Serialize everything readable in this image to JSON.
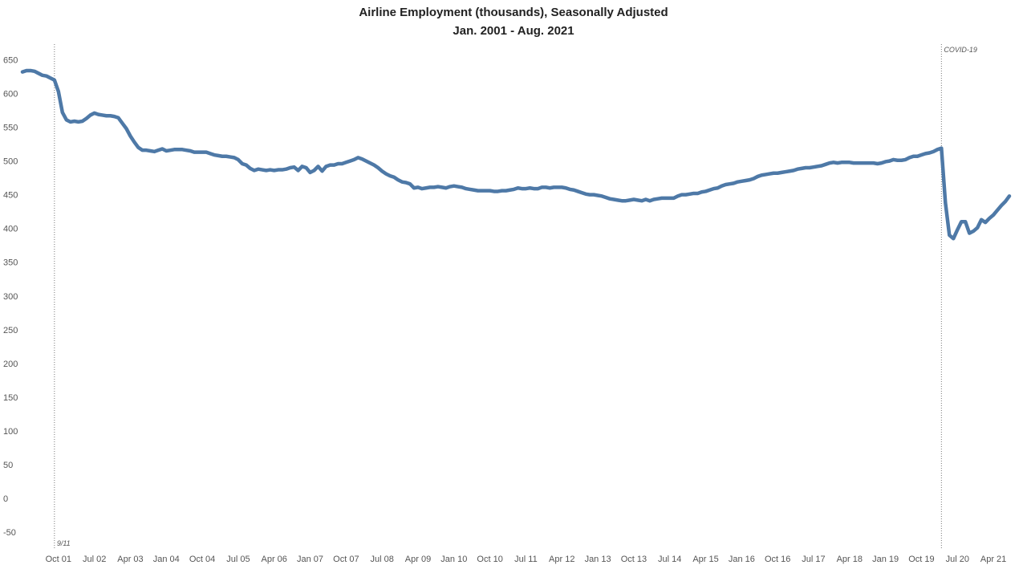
{
  "chart_data": {
    "type": "line",
    "title": "Airline Employment (thousands), Seasonally Adjusted",
    "subtitle": "Jan. 2001 - Aug. 2021",
    "xlabel": "",
    "ylabel": "",
    "ylim": [
      -50,
      650
    ],
    "xlim": [
      "2001-01",
      "2021-08"
    ],
    "grid": false,
    "y_ticks": [
      "650",
      "600",
      "550",
      "500",
      "450",
      "400",
      "350",
      "300",
      "250",
      "200",
      "150",
      "100",
      "50",
      "0",
      "-50"
    ],
    "x_ticks": [
      {
        "label": "Oct 01",
        "date": "2001-10"
      },
      {
        "label": "Jul 02",
        "date": "2002-07"
      },
      {
        "label": "Apr 03",
        "date": "2003-04"
      },
      {
        "label": "Jan 04",
        "date": "2004-01"
      },
      {
        "label": "Oct 04",
        "date": "2004-10"
      },
      {
        "label": "Jul 05",
        "date": "2005-07"
      },
      {
        "label": "Apr 06",
        "date": "2006-04"
      },
      {
        "label": "Jan 07",
        "date": "2007-01"
      },
      {
        "label": "Oct 07",
        "date": "2007-10"
      },
      {
        "label": "Jul 08",
        "date": "2008-07"
      },
      {
        "label": "Apr 09",
        "date": "2009-04"
      },
      {
        "label": "Jan 10",
        "date": "2010-01"
      },
      {
        "label": "Oct 10",
        "date": "2010-10"
      },
      {
        "label": "Jul 11",
        "date": "2011-07"
      },
      {
        "label": "Apr 12",
        "date": "2012-04"
      },
      {
        "label": "Jan 13",
        "date": "2013-01"
      },
      {
        "label": "Oct 13",
        "date": "2013-10"
      },
      {
        "label": "Jul 14",
        "date": "2014-07"
      },
      {
        "label": "Apr 15",
        "date": "2015-04"
      },
      {
        "label": "Jan 16",
        "date": "2016-01"
      },
      {
        "label": "Oct 16",
        "date": "2016-10"
      },
      {
        "label": "Jul 17",
        "date": "2017-07"
      },
      {
        "label": "Apr 18",
        "date": "2018-04"
      },
      {
        "label": "Jan 19",
        "date": "2019-01"
      },
      {
        "label": "Oct 19",
        "date": "2019-10"
      },
      {
        "label": "Jul 20",
        "date": "2020-07"
      },
      {
        "label": "Apr 21",
        "date": "2021-04"
      }
    ],
    "annotations": [
      {
        "text": "9/11",
        "date": "2001-09"
      },
      {
        "text": "COVID-19",
        "date": "2020-03"
      }
    ],
    "line_color": "#4e79a7",
    "series": [
      {
        "points": [
          [
            "2001-01",
            632
          ],
          [
            "2001-02",
            634
          ],
          [
            "2001-03",
            634
          ],
          [
            "2001-04",
            633
          ],
          [
            "2001-05",
            630
          ],
          [
            "2001-06",
            627
          ],
          [
            "2001-07",
            626
          ],
          [
            "2001-08",
            623
          ],
          [
            "2001-09",
            620
          ],
          [
            "2001-10",
            603
          ],
          [
            "2001-11",
            572
          ],
          [
            "2001-12",
            561
          ],
          [
            "2002-01",
            558
          ],
          [
            "2002-02",
            559
          ],
          [
            "2002-03",
            558
          ],
          [
            "2002-04",
            559
          ],
          [
            "2002-05",
            563
          ],
          [
            "2002-06",
            568
          ],
          [
            "2002-07",
            571
          ],
          [
            "2002-08",
            569
          ],
          [
            "2002-09",
            568
          ],
          [
            "2002-10",
            567
          ],
          [
            "2002-11",
            567
          ],
          [
            "2002-12",
            566
          ],
          [
            "2003-01",
            564
          ],
          [
            "2003-02",
            556
          ],
          [
            "2003-03",
            548
          ],
          [
            "2003-04",
            537
          ],
          [
            "2003-05",
            528
          ],
          [
            "2003-06",
            520
          ],
          [
            "2003-07",
            516
          ],
          [
            "2003-08",
            516
          ],
          [
            "2003-09",
            515
          ],
          [
            "2003-10",
            514
          ],
          [
            "2003-11",
            516
          ],
          [
            "2003-12",
            518
          ],
          [
            "2004-01",
            515
          ],
          [
            "2004-02",
            516
          ],
          [
            "2004-03",
            517
          ],
          [
            "2004-04",
            517
          ],
          [
            "2004-05",
            517
          ],
          [
            "2004-06",
            516
          ],
          [
            "2004-07",
            515
          ],
          [
            "2004-08",
            513
          ],
          [
            "2004-09",
            513
          ],
          [
            "2004-10",
            513
          ],
          [
            "2004-11",
            513
          ],
          [
            "2004-12",
            511
          ],
          [
            "2005-01",
            509
          ],
          [
            "2005-02",
            508
          ],
          [
            "2005-03",
            507
          ],
          [
            "2005-04",
            507
          ],
          [
            "2005-05",
            506
          ],
          [
            "2005-06",
            505
          ],
          [
            "2005-07",
            502
          ],
          [
            "2005-08",
            496
          ],
          [
            "2005-09",
            494
          ],
          [
            "2005-10",
            489
          ],
          [
            "2005-11",
            486
          ],
          [
            "2005-12",
            488
          ],
          [
            "2006-01",
            487
          ],
          [
            "2006-02",
            486
          ],
          [
            "2006-03",
            487
          ],
          [
            "2006-04",
            486
          ],
          [
            "2006-05",
            487
          ],
          [
            "2006-06",
            487
          ],
          [
            "2006-07",
            488
          ],
          [
            "2006-08",
            490
          ],
          [
            "2006-09",
            491
          ],
          [
            "2006-10",
            486
          ],
          [
            "2006-11",
            492
          ],
          [
            "2006-12",
            490
          ],
          [
            "2007-01",
            483
          ],
          [
            "2007-02",
            486
          ],
          [
            "2007-03",
            492
          ],
          [
            "2007-04",
            485
          ],
          [
            "2007-05",
            492
          ],
          [
            "2007-06",
            494
          ],
          [
            "2007-07",
            494
          ],
          [
            "2007-08",
            496
          ],
          [
            "2007-09",
            496
          ],
          [
            "2007-10",
            498
          ],
          [
            "2007-11",
            500
          ],
          [
            "2007-12",
            502
          ],
          [
            "2008-01",
            505
          ],
          [
            "2008-02",
            503
          ],
          [
            "2008-03",
            500
          ],
          [
            "2008-04",
            497
          ],
          [
            "2008-05",
            494
          ],
          [
            "2008-06",
            490
          ],
          [
            "2008-07",
            485
          ],
          [
            "2008-08",
            481
          ],
          [
            "2008-09",
            478
          ],
          [
            "2008-10",
            476
          ],
          [
            "2008-11",
            472
          ],
          [
            "2008-12",
            469
          ],
          [
            "2009-01",
            468
          ],
          [
            "2009-02",
            466
          ],
          [
            "2009-03",
            460
          ],
          [
            "2009-04",
            461
          ],
          [
            "2009-05",
            459
          ],
          [
            "2009-06",
            460
          ],
          [
            "2009-07",
            461
          ],
          [
            "2009-08",
            461
          ],
          [
            "2009-09",
            462
          ],
          [
            "2009-10",
            461
          ],
          [
            "2009-11",
            460
          ],
          [
            "2009-12",
            462
          ],
          [
            "2010-01",
            463
          ],
          [
            "2010-02",
            462
          ],
          [
            "2010-03",
            461
          ],
          [
            "2010-04",
            459
          ],
          [
            "2010-05",
            458
          ],
          [
            "2010-06",
            457
          ],
          [
            "2010-07",
            456
          ],
          [
            "2010-08",
            456
          ],
          [
            "2010-09",
            456
          ],
          [
            "2010-10",
            456
          ],
          [
            "2010-11",
            455
          ],
          [
            "2010-12",
            455
          ],
          [
            "2011-01",
            456
          ],
          [
            "2011-02",
            456
          ],
          [
            "2011-03",
            457
          ],
          [
            "2011-04",
            458
          ],
          [
            "2011-05",
            460
          ],
          [
            "2011-06",
            459
          ],
          [
            "2011-07",
            459
          ],
          [
            "2011-08",
            460
          ],
          [
            "2011-09",
            459
          ],
          [
            "2011-10",
            459
          ],
          [
            "2011-11",
            461
          ],
          [
            "2011-12",
            461
          ],
          [
            "2012-01",
            460
          ],
          [
            "2012-02",
            461
          ],
          [
            "2012-03",
            461
          ],
          [
            "2012-04",
            461
          ],
          [
            "2012-05",
            460
          ],
          [
            "2012-06",
            458
          ],
          [
            "2012-07",
            457
          ],
          [
            "2012-08",
            455
          ],
          [
            "2012-09",
            453
          ],
          [
            "2012-10",
            451
          ],
          [
            "2012-11",
            450
          ],
          [
            "2012-12",
            450
          ],
          [
            "2013-01",
            449
          ],
          [
            "2013-02",
            448
          ],
          [
            "2013-03",
            446
          ],
          [
            "2013-04",
            444
          ],
          [
            "2013-05",
            443
          ],
          [
            "2013-06",
            442
          ],
          [
            "2013-07",
            441
          ],
          [
            "2013-08",
            441
          ],
          [
            "2013-09",
            442
          ],
          [
            "2013-10",
            443
          ],
          [
            "2013-11",
            442
          ],
          [
            "2013-12",
            441
          ],
          [
            "2014-01",
            443
          ],
          [
            "2014-02",
            441
          ],
          [
            "2014-03",
            443
          ],
          [
            "2014-04",
            444
          ],
          [
            "2014-05",
            445
          ],
          [
            "2014-06",
            445
          ],
          [
            "2014-07",
            445
          ],
          [
            "2014-08",
            445
          ],
          [
            "2014-09",
            448
          ],
          [
            "2014-10",
            450
          ],
          [
            "2014-11",
            450
          ],
          [
            "2014-12",
            451
          ],
          [
            "2015-01",
            452
          ],
          [
            "2015-02",
            452
          ],
          [
            "2015-03",
            454
          ],
          [
            "2015-04",
            455
          ],
          [
            "2015-05",
            457
          ],
          [
            "2015-06",
            459
          ],
          [
            "2015-07",
            460
          ],
          [
            "2015-08",
            463
          ],
          [
            "2015-09",
            465
          ],
          [
            "2015-10",
            466
          ],
          [
            "2015-11",
            467
          ],
          [
            "2015-12",
            469
          ],
          [
            "2016-01",
            470
          ],
          [
            "2016-02",
            471
          ],
          [
            "2016-03",
            472
          ],
          [
            "2016-04",
            474
          ],
          [
            "2016-05",
            477
          ],
          [
            "2016-06",
            479
          ],
          [
            "2016-07",
            480
          ],
          [
            "2016-08",
            481
          ],
          [
            "2016-09",
            482
          ],
          [
            "2016-10",
            482
          ],
          [
            "2016-11",
            483
          ],
          [
            "2016-12",
            484
          ],
          [
            "2017-01",
            485
          ],
          [
            "2017-02",
            486
          ],
          [
            "2017-03",
            488
          ],
          [
            "2017-04",
            489
          ],
          [
            "2017-05",
            490
          ],
          [
            "2017-06",
            490
          ],
          [
            "2017-07",
            491
          ],
          [
            "2017-08",
            492
          ],
          [
            "2017-09",
            493
          ],
          [
            "2017-10",
            495
          ],
          [
            "2017-11",
            497
          ],
          [
            "2017-12",
            498
          ],
          [
            "2018-01",
            497
          ],
          [
            "2018-02",
            498
          ],
          [
            "2018-03",
            498
          ],
          [
            "2018-04",
            498
          ],
          [
            "2018-05",
            497
          ],
          [
            "2018-06",
            497
          ],
          [
            "2018-07",
            497
          ],
          [
            "2018-08",
            497
          ],
          [
            "2018-09",
            497
          ],
          [
            "2018-10",
            497
          ],
          [
            "2018-11",
            496
          ],
          [
            "2018-12",
            497
          ],
          [
            "2019-01",
            499
          ],
          [
            "2019-02",
            500
          ],
          [
            "2019-03",
            502
          ],
          [
            "2019-04",
            501
          ],
          [
            "2019-05",
            501
          ],
          [
            "2019-06",
            502
          ],
          [
            "2019-07",
            505
          ],
          [
            "2019-08",
            507
          ],
          [
            "2019-09",
            507
          ],
          [
            "2019-10",
            509
          ],
          [
            "2019-11",
            511
          ],
          [
            "2019-12",
            512
          ],
          [
            "2020-01",
            514
          ],
          [
            "2020-02",
            517
          ],
          [
            "2020-03",
            519
          ],
          [
            "2020-04",
            438
          ],
          [
            "2020-05",
            390
          ],
          [
            "2020-06",
            385
          ],
          [
            "2020-07",
            398
          ],
          [
            "2020-08",
            410
          ],
          [
            "2020-09",
            410
          ],
          [
            "2020-10",
            393
          ],
          [
            "2020-11",
            396
          ],
          [
            "2020-12",
            401
          ],
          [
            "2021-01",
            413
          ],
          [
            "2021-02",
            409
          ],
          [
            "2021-03",
            415
          ],
          [
            "2021-04",
            420
          ],
          [
            "2021-05",
            427
          ],
          [
            "2021-06",
            434
          ],
          [
            "2021-07",
            440
          ],
          [
            "2021-08",
            448
          ]
        ]
      }
    ]
  }
}
